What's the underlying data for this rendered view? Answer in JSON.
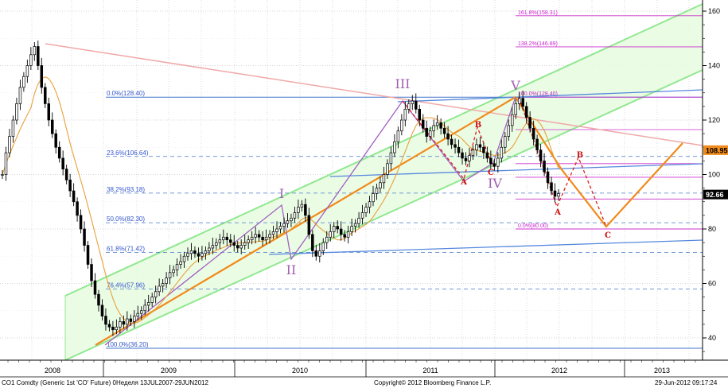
{
  "chart_data": {
    "type": "candlestick",
    "y_ticks": [
      "40",
      "60",
      "80",
      "100",
      "120",
      "140",
      "160"
    ],
    "x_ticks": [
      "2008",
      "2009",
      "2010",
      "2011",
      "2012",
      "2013"
    ],
    "ylim": [
      32,
      162
    ],
    "grid": "dotted",
    "price_tags": [
      {
        "label": "108.95",
        "value": 108.95,
        "color": "#f08a1a",
        "text_color": "#000000"
      },
      {
        "label": "92.66",
        "value": 92.66,
        "color": "#000000",
        "text_color": "#ffffff"
      }
    ],
    "fib_retracement": [
      {
        "label": "0.0%(128.40)",
        "value": 128.4
      },
      {
        "label": "23.6%(106.64)",
        "value": 106.64
      },
      {
        "label": "38.2%(93.18)",
        "value": 93.18
      },
      {
        "label": "50.0%(82.30)",
        "value": 82.3
      },
      {
        "label": "61.8%(71.42)",
        "value": 71.42
      },
      {
        "label": "76.4%(57.96)",
        "value": 57.96
      },
      {
        "label": "100.0%(36.20)",
        "value": 36.2
      }
    ],
    "fib_extension": [
      {
        "label": "161.8%(158.31)",
        "value": 158.31
      },
      {
        "label": "138.2%(146.89)",
        "value": 146.89
      },
      {
        "label": "100.0%(128.40)",
        "value": 128.4
      },
      {
        "label": "0.0%(80.00)",
        "value": 80.0
      }
    ],
    "elliott_waves": [
      {
        "label": "I",
        "value": 89
      },
      {
        "label": "II",
        "value": 67
      },
      {
        "label": "III",
        "value": 127
      },
      {
        "label": "IV",
        "value": 103
      },
      {
        "label": "V",
        "value": 128
      }
    ],
    "abc_waves": [
      {
        "label": "A",
        "value": 98
      },
      {
        "label": "B",
        "value": 118
      },
      {
        "label": "C",
        "value": 104
      },
      {
        "label": "A",
        "value": 85
      },
      {
        "label": "B",
        "value": 108
      },
      {
        "label": "C",
        "value": 78
      }
    ],
    "series": [
      {
        "name": "Generic 1st 'CO' Future",
        "values": [
          100,
          108,
          114,
          120,
          126,
          132,
          136,
          140,
          144,
          147,
          140,
          132,
          126,
          120,
          115,
          110,
          106,
          102,
          98,
          94,
          90,
          85,
          80,
          74,
          67,
          61,
          56,
          52,
          48,
          45,
          44,
          43,
          44,
          46,
          45,
          47,
          46,
          48,
          49,
          50,
          52,
          53,
          55,
          57,
          59,
          60,
          62,
          64,
          65,
          67,
          68,
          70,
          71,
          72,
          71,
          70,
          71,
          72,
          73,
          74,
          75,
          76,
          77,
          76,
          75,
          74,
          73,
          74,
          75,
          76,
          77,
          78,
          77,
          76,
          77,
          78,
          79,
          80,
          81,
          82,
          83,
          84,
          86,
          88,
          89,
          85,
          78,
          72,
          70,
          72,
          75,
          77,
          79,
          81,
          80,
          78,
          77,
          79,
          81,
          82,
          84,
          86,
          88,
          90,
          93,
          95,
          97,
          100,
          104,
          108,
          112,
          116,
          120,
          124,
          126,
          127,
          124,
          120,
          117,
          114,
          116,
          118,
          119,
          117,
          115,
          113,
          111,
          110,
          108,
          106,
          105,
          107,
          109,
          111,
          110,
          108,
          106,
          104,
          103,
          106,
          110,
          114,
          118,
          122,
          126,
          128,
          125,
          121,
          117,
          113,
          109,
          105,
          101,
          97,
          94,
          92,
          93
        ]
      }
    ]
  },
  "footer": {
    "ticker": "CO1 Comdty (Generic 1st 'CO' Future) 0Неделя 13JUL2007-29JUN2012",
    "copyright": "Copyright© 2012 Bloomberg Finance L.P.",
    "timestamp": "29-Jun-2012 09:17:24"
  },
  "colors": {
    "candles": "#000000",
    "moving_average": "#e8a03c",
    "channel": "#90e890",
    "channel_fill": "#e8fbe0",
    "trend_orange": "#f08a1a",
    "trend_purple": "#a060c0",
    "fib_blue": "#4477cc",
    "fib_magenta": "#cc33cc",
    "wave_red": "#dd2222",
    "resistance_pink": "#f0a8a8"
  }
}
